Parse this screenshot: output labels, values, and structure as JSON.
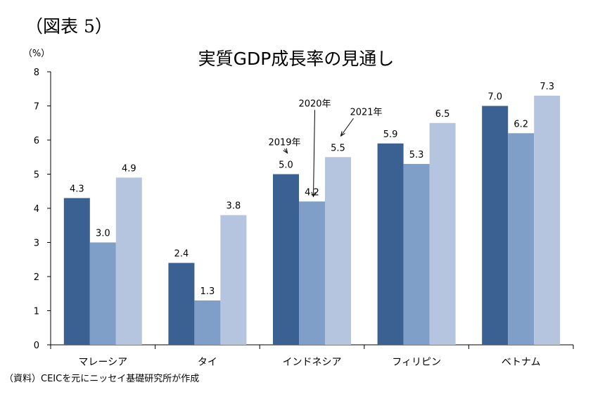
{
  "figure_label": "（図表 5）",
  "source_note": "（資料）CEICを元にニッセイ基礎研究所が作成",
  "chart_data": {
    "type": "bar",
    "title": "実質GDP成長率の見通し",
    "ylabel": "（%）",
    "xlabel": "",
    "ylim": [
      0,
      8
    ],
    "yticks": [
      "0",
      "1",
      "2",
      "3",
      "4",
      "5",
      "6",
      "7",
      "8"
    ],
    "grid": false,
    "categories": [
      "マレーシア",
      "タイ",
      "インドネシア",
      "フィリピン",
      "ベトナム"
    ],
    "series": [
      {
        "name": "2019年",
        "color": "#3a6191",
        "values": [
          4.3,
          2.4,
          5.0,
          5.9,
          7.0
        ],
        "labels": [
          "4.3",
          "2.4",
          "5.0",
          "5.9",
          "7.0"
        ]
      },
      {
        "name": "2020年",
        "color": "#7f9ec8",
        "values": [
          3.0,
          1.3,
          4.2,
          5.3,
          6.2
        ],
        "labels": [
          "3.0",
          "1.3",
          "4.2",
          "5.3",
          "6.2"
        ]
      },
      {
        "name": "2021年",
        "color": "#b5c5df",
        "values": [
          4.9,
          3.8,
          5.5,
          6.5,
          7.3
        ],
        "labels": [
          "4.9",
          "3.8",
          "5.5",
          "6.5",
          "7.3"
        ]
      }
    ]
  }
}
